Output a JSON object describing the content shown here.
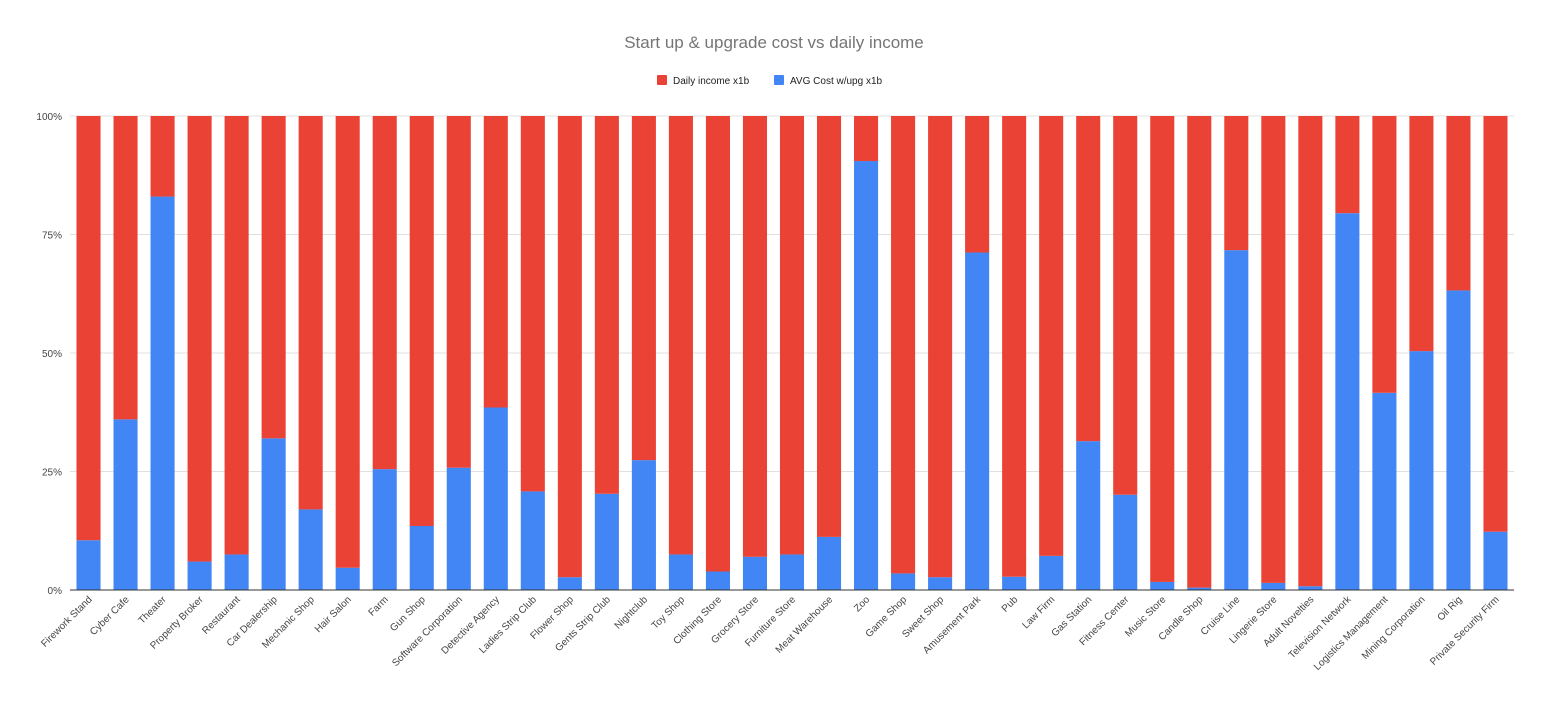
{
  "chart_data": {
    "type": "bar",
    "stacked": "percent",
    "title": "Start up & upgrade cost vs daily income",
    "legend_position": "top",
    "grid": true,
    "ylim": [
      0,
      100
    ],
    "yticks": [
      "0%",
      "25%",
      "50%",
      "75%",
      "100%"
    ],
    "categories": [
      "Firework Stand",
      "Cyber Cafe",
      "Theater",
      "Property Broker",
      "Restaurant",
      "Car Dealership",
      "Mechanic Shop",
      "Hair Salon",
      "Farm",
      "Gun Shop",
      "Software Corporation",
      "Detective Agency",
      "Ladies Strip Club",
      "Flower Shop",
      "Gents Strip Club",
      "Nightclub",
      "Toy Shop",
      "Clothing Store",
      "Grocery Store",
      "Furniture Store",
      "Meat Warehouse",
      "Zoo",
      "Game Shop",
      "Sweet Shop",
      "Amusement Park",
      "Pub",
      "Law Firm",
      "Gas Station",
      "Fitness Center",
      "Music Store",
      "Candle Shop",
      "Cruise Line",
      "Lingerie Store",
      "Adult Novelties",
      "Television Network",
      "Logistics Management",
      "Mining Corporation",
      "Oil Rig",
      "Private Security Firm"
    ],
    "series": [
      {
        "name": "Daily income x1b",
        "color": "#ea4335",
        "values": [
          89.5,
          64,
          17,
          94,
          92.5,
          68,
          83,
          95.3,
          74.5,
          86.5,
          74.2,
          61.5,
          79.2,
          97.3,
          79.7,
          72.6,
          92.5,
          96.1,
          93,
          92.5,
          88.8,
          9.5,
          96.5,
          97.3,
          28.8,
          97.2,
          92.8,
          68.6,
          79.9,
          98.3,
          99.5,
          28.3,
          98.5,
          99.2,
          20.5,
          58.4,
          49.6,
          36.8,
          87.7
        ]
      },
      {
        "name": "AVG Cost w/upg x1b",
        "color": "#4285f4",
        "values": [
          10.5,
          36,
          83,
          6,
          7.5,
          32,
          17,
          4.7,
          25.5,
          13.5,
          25.8,
          38.5,
          20.8,
          2.7,
          20.3,
          27.4,
          7.5,
          3.9,
          7,
          7.5,
          11.2,
          90.5,
          3.5,
          2.7,
          71.2,
          2.8,
          7.2,
          31.4,
          20.1,
          1.7,
          0.5,
          71.7,
          1.5,
          0.8,
          79.5,
          41.6,
          50.4,
          63.2,
          12.3
        ]
      }
    ]
  }
}
